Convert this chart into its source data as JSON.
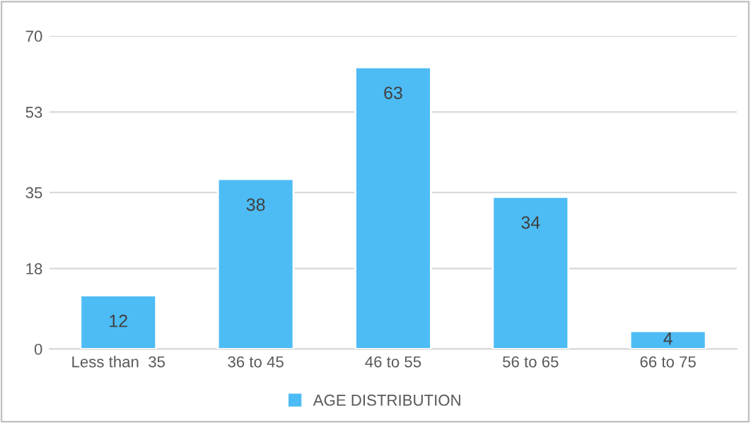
{
  "chart_data": {
    "type": "bar",
    "categories": [
      "Less than  35",
      "36 to 45",
      "46 to 55",
      "56 to 65",
      "66 to 75"
    ],
    "series": [
      {
        "name": "AGE DISTRIBUTION",
        "color": "#4dbcf5",
        "values": [
          12,
          38,
          63,
          34,
          4
        ]
      }
    ],
    "ylim": [
      0,
      70
    ],
    "yticks": [
      0,
      18,
      35,
      53,
      70
    ],
    "grid": "y",
    "data_labels": true,
    "legend": "bottom"
  }
}
